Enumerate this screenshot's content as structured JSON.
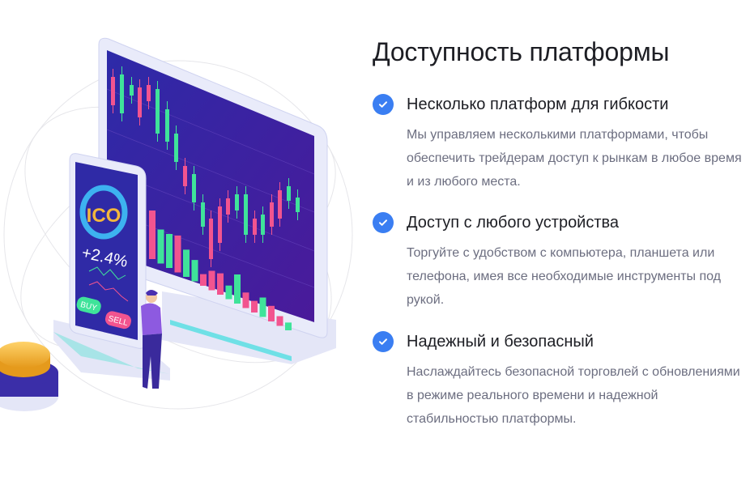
{
  "title": "Доступность платформы",
  "features": [
    {
      "heading": "Несколько платформ для гибкости",
      "body": "Мы управляем несколькими платформами, чтобы обеспечить трейдерам доступ к рынкам в любое время и из любого места.",
      "icon": "check-circle-icon"
    },
    {
      "heading": "Доступ с любого устройства",
      "body": "Торгуйте с удобством с компьютера, планшета или телефона, имея все необходимые инструменты под рукой.",
      "icon": "check-circle-icon"
    },
    {
      "heading": "Надежный и безопасный",
      "body": "Наслаждайтесь безопасной торговлей с обновлениями в режиме реального времени и надежной стабильностью платформы.",
      "icon": "check-circle-icon"
    }
  ],
  "illustration": {
    "phone_label": "ICO",
    "phone_change": "+2.4%",
    "buy_label": "BUY",
    "sell_label": "SELL"
  },
  "colors": {
    "accent": "#3a7ef2",
    "screen": "#3a1f9e",
    "up": "#3fe39a",
    "down": "#f2548f"
  }
}
